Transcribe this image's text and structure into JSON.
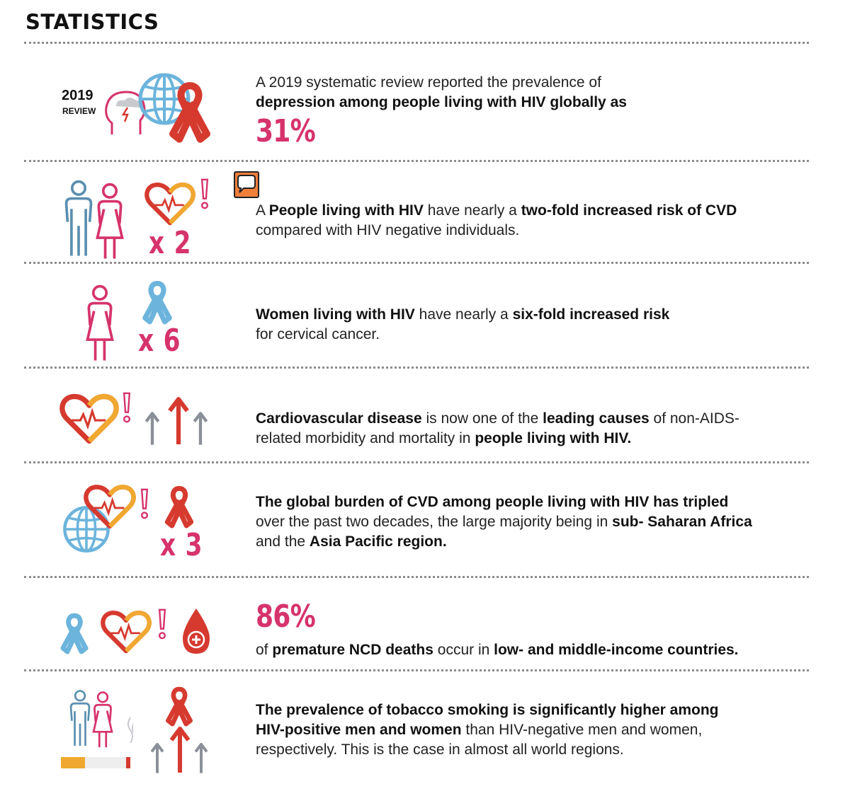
{
  "page": {
    "title": "STATISTICS"
  },
  "rows": [
    {
      "badge_year": "2019",
      "badge_word": "REVIEW",
      "line1": "A 2019 systematic review reported the prevalence of",
      "line2_bold": "depression among people living with HIV globally as",
      "big_stat": "31%",
      "icons": [
        "head-storm-icon",
        "globe-icon",
        "red-ribbon-icon"
      ]
    },
    {
      "prefix": "A",
      "bold1": "People living with HIV",
      "text1": "have nearly a",
      "bold2": "two-fold increased risk of CVD",
      "line2": "compared with HIV negative individuals.",
      "multiplier": "x 2",
      "icons": [
        "man-icon",
        "woman-icon",
        "heart-pulse-icon",
        "exclamation-icon"
      ]
    },
    {
      "bold1": "Women living with HIV",
      "text1": "have nearly a",
      "bold2": "six-fold increased risk",
      "line2": "for cervical cancer.",
      "multiplier": "x 6",
      "icons": [
        "woman-icon",
        "blue-ribbon-icon"
      ]
    },
    {
      "bold1": "Cardiovascular disease",
      "text1": "is now one of the",
      "bold2": "leading causes",
      "text2": "of non-AIDS-",
      "text3": "related morbidity and mortality in",
      "bold3": "people living with HIV.",
      "icons": [
        "heart-pulse-icon",
        "exclamation-icon",
        "up-arrows-icon"
      ]
    },
    {
      "bold1": "The global burden of CVD among people living with HIV has tripled",
      "text1": "over the past two decades, the large majority being in",
      "bold2": "sub- Saharan Africa",
      "text2": "and the",
      "bold3": "Asia Pacific region.",
      "multiplier": "x 3",
      "icons": [
        "globe-icon",
        "heart-pulse-icon",
        "exclamation-icon",
        "red-ribbon-icon"
      ]
    },
    {
      "big_stat": "86%",
      "text1": "of",
      "bold1": "premature NCD deaths",
      "text2": "occur in",
      "bold2": "low- and middle-income countries.",
      "icons": [
        "blue-ribbon-icon",
        "heart-pulse-icon",
        "exclamation-icon",
        "blood-drop-icon"
      ]
    },
    {
      "bold1": "The prevalence of tobacco smoking is significantly higher among",
      "bold2": "HIV-positive men and women",
      "text1": "than HIV-negative men and women,",
      "text2": "respectively. This is the case in almost all world regions.",
      "icons": [
        "man-icon",
        "woman-icon",
        "cigarette-icon",
        "red-ribbon-icon",
        "up-arrows-icon"
      ]
    }
  ],
  "colors": {
    "magenta": "#d6336c",
    "red": "#d63a2f",
    "blue": "#6cb4dc",
    "orange": "#f0a830",
    "grey": "#8a8f98",
    "steel": "#5b8fb0"
  }
}
